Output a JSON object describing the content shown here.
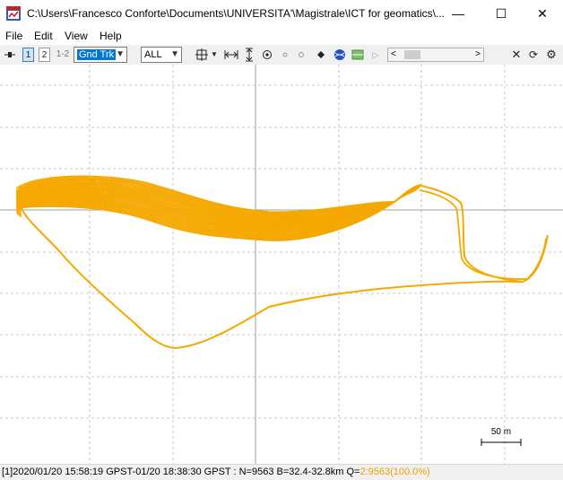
{
  "window": {
    "title": "C:\\Users\\Francesco Conforte\\Documents\\UNIVERSITA'\\Magistrale\\ICT for geomatics\\...",
    "minimize": "—",
    "maximize": "☐",
    "close": "✕"
  },
  "menu": [
    "File",
    "Edit",
    "View",
    "Help"
  ],
  "toolbar": {
    "solution1": "1",
    "solution2": "2",
    "solution12": "1-2",
    "plot_type": "Gnd Trk",
    "satellite": "ALL"
  },
  "plot": {
    "track_color": "#f5a800",
    "scale_label": "50 m"
  },
  "status": {
    "text": "[1]2020/01/20 15:58:19 GPST-01/20 18:38:30 GPST : N=9563 B=32.4-32.8km Q=",
    "quality": "2:9563(100.0%)"
  }
}
